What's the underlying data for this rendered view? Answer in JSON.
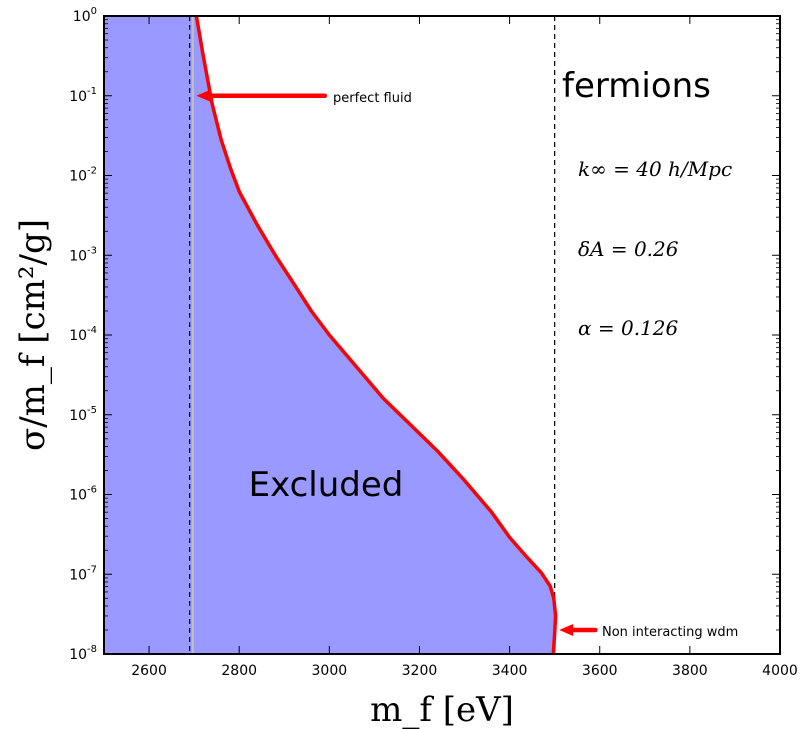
{
  "chart_data": {
    "type": "area",
    "title": "",
    "xlabel": "m_f [eV]",
    "ylabel": "σ/m_f [cm²/g]",
    "xlim": [
      2500,
      4000
    ],
    "ylim": [
      1e-08,
      1
    ],
    "yscale": "log",
    "x_ticks": [
      2600,
      2800,
      3000,
      3200,
      3400,
      3600,
      3800,
      4000
    ],
    "y_ticks": [
      -8,
      -7,
      -6,
      -5,
      -4,
      -3,
      -2,
      -1,
      0
    ],
    "colors": {
      "excluded_fill": "#9999ff",
      "boundary_line": "#ff0000",
      "arrow": "#ff0000",
      "vline": "#000000",
      "vline_grey": "#c0c0c0"
    },
    "boundary_curve": {
      "x": [
        2705,
        2720,
        2740,
        2760,
        2780,
        2800,
        2840,
        2880,
        2920,
        2960,
        3000,
        3060,
        3120,
        3180,
        3240,
        3300,
        3360,
        3400,
        3440,
        3470,
        3490,
        3498,
        3502,
        3500,
        3497
      ],
      "y": [
        1.0,
        0.32,
        0.079,
        0.028,
        0.0126,
        0.0063,
        0.0024,
        0.001,
        0.00045,
        0.0002,
        0.0001,
        4e-05,
        1.6e-05,
        7.5e-06,
        3.5e-06,
        1.5e-06,
        6e-07,
        2.9e-07,
        1.6e-07,
        1.05e-07,
        7.1e-08,
        5e-08,
        3e-08,
        1.8e-08,
        1e-08
      ]
    },
    "vertical_lines": [
      {
        "x": 2690,
        "style": "dashed"
      },
      {
        "x": 2697,
        "style": "solid-grey"
      },
      {
        "x": 3500,
        "style": "dashed"
      }
    ],
    "annotations": {
      "excluded": "Excluded",
      "fermions": "fermions",
      "k_inf": "k∞ = 40 h/Mpc",
      "delta_a": "δA = 0.26",
      "alpha": "α = 0.126",
      "perfect_fluid": "perfect fluid",
      "non_interacting": "Non interacting wdm"
    },
    "arrows": {
      "perfect_fluid": {
        "tail_x": 2990,
        "head_x": 2705,
        "y": 0.1
      },
      "non_interacting": {
        "tail_x": 3590,
        "head_x": 3510,
        "y": 2e-08
      }
    }
  }
}
